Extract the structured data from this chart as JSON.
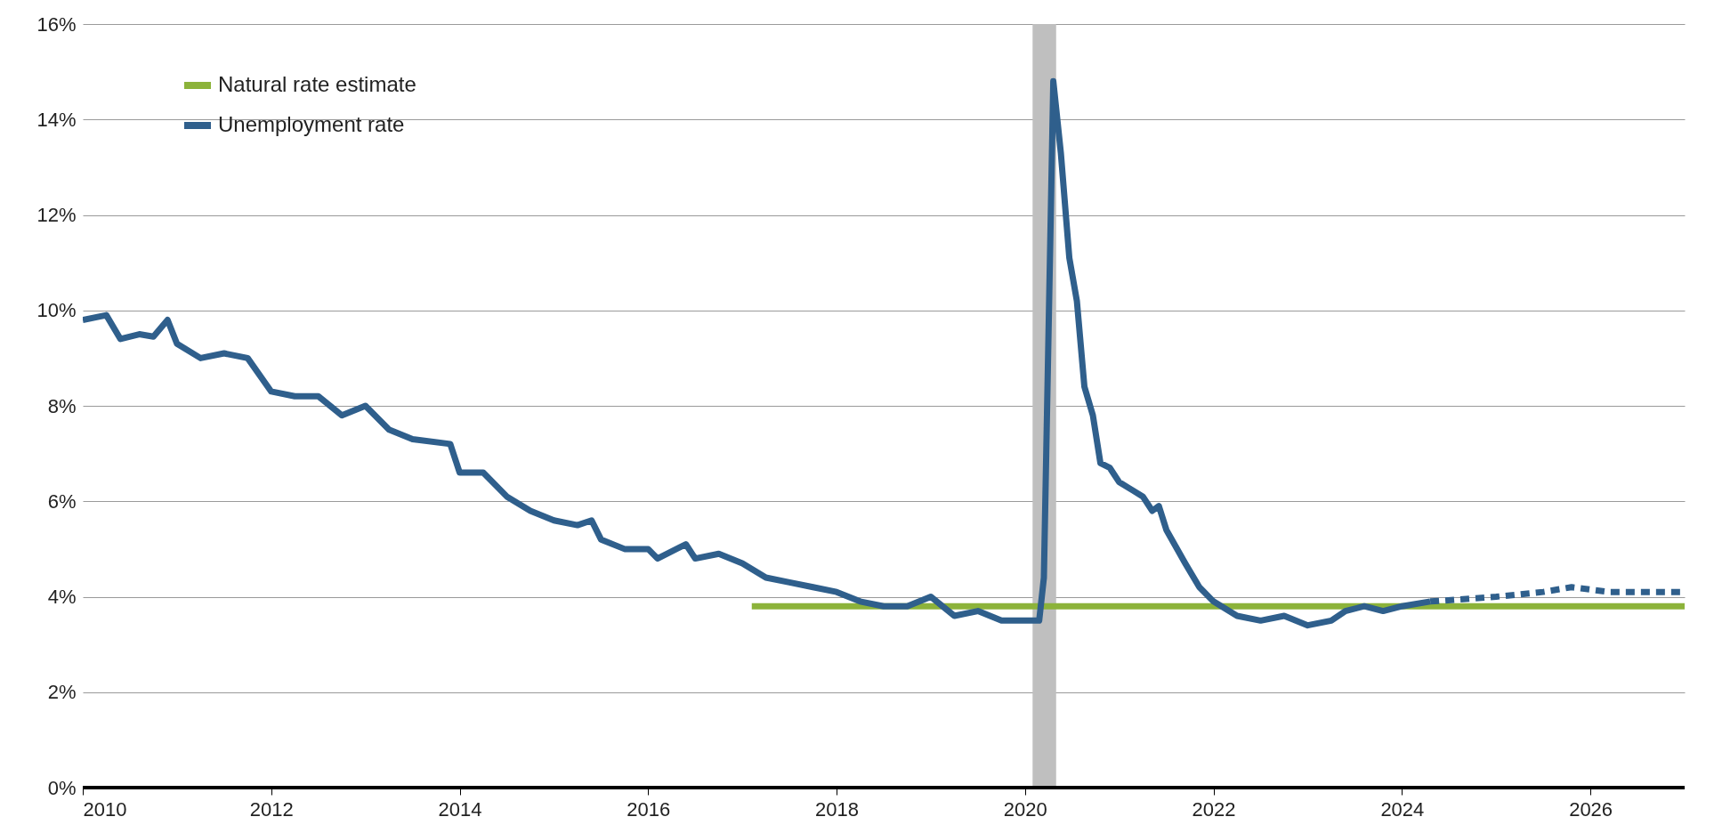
{
  "chart_data": {
    "type": "line",
    "xlim": [
      2010,
      2027
    ],
    "xticks": [
      2010,
      2012,
      2014,
      2016,
      2018,
      2020,
      2022,
      2024,
      2026
    ],
    "ylim": [
      0,
      16
    ],
    "yticks": [
      {
        "value": 0,
        "label": "0%"
      },
      {
        "value": 2,
        "label": "2%"
      },
      {
        "value": 4,
        "label": "4%"
      },
      {
        "value": 6,
        "label": "6%"
      },
      {
        "value": 8,
        "label": "8%"
      },
      {
        "value": 10,
        "label": "10%"
      },
      {
        "value": 12,
        "label": "12%"
      },
      {
        "value": 14,
        "label": "14%"
      },
      {
        "value": 16,
        "label": "16%"
      }
    ],
    "grid": "y",
    "legend": "top left",
    "bands": [
      {
        "axis": "x",
        "from": 2020.08,
        "to": 2020.33,
        "color": "#bfbfbf"
      }
    ],
    "series": [
      {
        "name": "Natural rate estimate",
        "color": "#8cb33a",
        "line_style": "solid",
        "x": [
          2017.1,
          2027
        ],
        "values": [
          3.8,
          3.8
        ]
      },
      {
        "name": "Unemployment rate",
        "color": "#2f5f8c",
        "line_style": "solid",
        "x": [
          2010.0,
          2010.25,
          2010.4,
          2010.6,
          2010.75,
          2010.9,
          2011.0,
          2011.25,
          2011.5,
          2011.75,
          2012.0,
          2012.25,
          2012.5,
          2012.75,
          2013.0,
          2013.25,
          2013.5,
          2013.9,
          2014.0,
          2014.25,
          2014.5,
          2014.75,
          2015.0,
          2015.25,
          2015.4,
          2015.5,
          2015.75,
          2016.0,
          2016.1,
          2016.4,
          2016.5,
          2016.75,
          2017.0,
          2017.25,
          2017.5,
          2017.75,
          2018.0,
          2018.25,
          2018.5,
          2018.75,
          2019.0,
          2019.25,
          2019.5,
          2019.75,
          2020.0,
          2020.15,
          2020.2,
          2020.3,
          2020.38,
          2020.47,
          2020.55,
          2020.63,
          2020.72,
          2020.8,
          2020.9,
          2021.0,
          2021.25,
          2021.35,
          2021.42,
          2021.5,
          2021.7,
          2021.85,
          2022.0,
          2022.25,
          2022.5,
          2022.75,
          2023.0,
          2023.25,
          2023.4,
          2023.6,
          2023.8,
          2024.0,
          2024.3
        ],
        "values": [
          9.8,
          9.9,
          9.4,
          9.5,
          9.45,
          9.8,
          9.3,
          9.0,
          9.1,
          9.0,
          8.3,
          8.2,
          8.2,
          7.8,
          8.0,
          7.5,
          7.3,
          7.2,
          6.6,
          6.6,
          6.1,
          5.8,
          5.6,
          5.5,
          5.6,
          5.2,
          5.0,
          5.0,
          4.8,
          5.1,
          4.8,
          4.9,
          4.7,
          4.4,
          4.3,
          4.2,
          4.1,
          3.9,
          3.8,
          3.8,
          4.0,
          3.6,
          3.7,
          3.5,
          3.5,
          3.5,
          4.4,
          14.8,
          13.3,
          11.1,
          10.2,
          8.4,
          7.8,
          6.8,
          6.7,
          6.4,
          6.1,
          5.8,
          5.9,
          5.4,
          4.7,
          4.2,
          3.9,
          3.6,
          3.5,
          3.6,
          3.4,
          3.5,
          3.7,
          3.8,
          3.7,
          3.8,
          3.9
        ]
      },
      {
        "color": "#2f5f8c",
        "line_style": "dashed",
        "x": [
          2024.3,
          2025.0,
          2025.5,
          2025.8,
          2026.2,
          2027.0
        ],
        "values": [
          3.9,
          4.0,
          4.1,
          4.2,
          4.1,
          4.1
        ]
      }
    ]
  }
}
